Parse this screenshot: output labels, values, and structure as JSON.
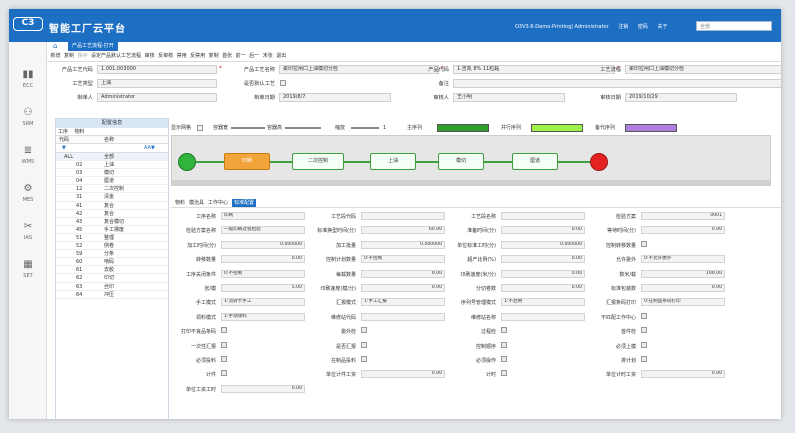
{
  "app": {
    "title": "智能工厂云平台",
    "logo": "C3",
    "user_info": "O3V3.6-Demo-Printing| Administrator",
    "links": [
      "注销",
      "密码",
      "关于"
    ],
    "search_placeholder": "全部"
  },
  "nav": [
    {
      "label": "ECC",
      "icon": "bar-chart-icon"
    },
    {
      "label": "SRM",
      "icon": "network-icon"
    },
    {
      "label": "WMS",
      "icon": "database-icon"
    },
    {
      "label": "MES",
      "icon": "gear-icon"
    },
    {
      "label": "IAS",
      "icon": "tools-icon"
    },
    {
      "label": "SET",
      "icon": "grid-icon"
    }
  ],
  "tabs": {
    "doc": "产品工艺流程-打开"
  },
  "toolbar": [
    "新增",
    "复制",
    "保存",
    "设定产品默认工艺流程",
    "审核",
    "反审核",
    "禁用",
    "反禁用",
    "复制",
    "首张",
    "前一",
    "后一",
    "末张",
    "退出"
  ],
  "header": {
    "process_code_label": "产品工艺代码",
    "process_code": "1.001.003000",
    "process_name_label": "产品工艺名称",
    "process_name": "柔印拉闸口上油模切分检",
    "product_code_label": "产品代码",
    "product_code": "1.吉凯 8% 11粒黏",
    "route_label": "工艺流程",
    "route": "柔印拉闸口上油模切分检",
    "type_label": "工艺类型",
    "type": "上油",
    "default_label": "是否默认工艺",
    "note_label": "备注",
    "creator_label": "制单人",
    "creator": "Administrator",
    "create_date_label": "制单日期",
    "create_date": "2019/8/7",
    "auditor_label": "审核人",
    "auditor": "王小明",
    "audit_date_label": "审核日期",
    "audit_date": "2019/10/29"
  },
  "config": {
    "title": "配置信息",
    "tabs": [
      "工序",
      "物料"
    ],
    "col_code": "代码",
    "col_name": "名称",
    "rows": [
      {
        "code": "ALL",
        "name": "全部"
      },
      {
        "code": "02",
        "name": "上油"
      },
      {
        "code": "03",
        "name": "模切"
      },
      {
        "code": "04",
        "name": "厘道"
      },
      {
        "code": "12",
        "name": "二次控制"
      },
      {
        "code": "31",
        "name": "清金"
      },
      {
        "code": "41",
        "name": "复合"
      },
      {
        "code": "42",
        "name": "复合"
      },
      {
        "code": "43",
        "name": "复合模切"
      },
      {
        "code": "45",
        "name": "手工摞废"
      },
      {
        "code": "51",
        "name": "整理"
      },
      {
        "code": "52",
        "name": "侧卷"
      },
      {
        "code": "59",
        "name": "分条"
      },
      {
        "code": "60",
        "name": "啃码"
      },
      {
        "code": "61",
        "name": "去胶"
      },
      {
        "code": "62",
        "name": "印切"
      },
      {
        "code": "63",
        "name": "丝印"
      },
      {
        "code": "64",
        "name": "冲压"
      }
    ]
  },
  "flow_controls": {
    "show_grid": "显示网格",
    "width_label": "容器宽",
    "height_label": "容器高",
    "zoom_label": "缩放",
    "zoom_value": "1",
    "main_col": "主序列",
    "parallel_col": "并行序列",
    "backup_col": "备代序列",
    "colors": {
      "main": "#2f9e2f",
      "parallel": "#9ef04a",
      "backup": "#b07ee0"
    }
  },
  "flow_nodes": [
    "印刷",
    "二次控制",
    "上油",
    "模切",
    "厘道"
  ],
  "prop_tabs": [
    "物料",
    "模治具",
    "工作中心",
    "标准配置"
  ],
  "props": [
    {
      "l": "工序名称",
      "v": "印刷",
      "t": "f"
    },
    {
      "l": "工艺段代码",
      "v": "",
      "t": "f"
    },
    {
      "l": "工艺段名称",
      "v": "",
      "t": "f"
    },
    {
      "l": "检验方案",
      "v": "0001",
      "t": "f"
    },
    {
      "l": "检验方案名称",
      "v": "一般印刷过程检验",
      "t": "f"
    },
    {
      "l": "标准换型时间(分)",
      "v": "60.00",
      "t": "f"
    },
    {
      "l": "准备时间(分)",
      "v": "0.00",
      "t": "f"
    },
    {
      "l": "等待时间(分)",
      "v": "0.00",
      "t": "f"
    },
    {
      "l": "加工时间(分)",
      "v": "0.000000",
      "t": "f"
    },
    {
      "l": "加工批量",
      "v": "0.000000",
      "t": "f"
    },
    {
      "l": "单位标准工时(分)",
      "v": "0.000000",
      "t": "f"
    },
    {
      "l": "控制转移数量",
      "v": "",
      "t": "c"
    },
    {
      "l": "转移数量",
      "v": "0.00",
      "t": "f"
    },
    {
      "l": "控制计划数量",
      "v": "0:不控制",
      "t": "f"
    },
    {
      "l": "超产比例(%)",
      "v": "0.00",
      "t": "f"
    },
    {
      "l": "允许委外",
      "v": "0:不允许委外",
      "t": "f"
    },
    {
      "l": "工序关闭条件",
      "v": "0:不控制",
      "t": "f"
    },
    {
      "l": "每载数量",
      "v": "0.00",
      "t": "f"
    },
    {
      "l": "印刷速度(米/分)",
      "v": "0.00",
      "t": "f"
    },
    {
      "l": "数米/载",
      "v": "100.00",
      "t": "f"
    },
    {
      "l": "张/模",
      "v": "5.00",
      "t": "f"
    },
    {
      "l": "印刷速度(模/分)",
      "v": "0.00",
      "t": "f"
    },
    {
      "l": "分切卷数",
      "v": "0.00",
      "t": "f"
    },
    {
      "l": "标准包装数",
      "v": "0.00",
      "t": "f"
    },
    {
      "l": "手工模式",
      "v": "1:流转卡手工",
      "t": "f"
    },
    {
      "l": "汇报模式",
      "v": "1:手工汇报",
      "t": "f"
    },
    {
      "l": "序列号管理模式",
      "v": "1:不启用",
      "t": "f"
    },
    {
      "l": "汇报条码打印",
      "v": "0:在制品条码打印",
      "t": "f"
    },
    {
      "l": "领料模式",
      "v": "1:手动领料",
      "t": "f"
    },
    {
      "l": "维修站代码",
      "v": "",
      "t": "f"
    },
    {
      "l": "维修站名称",
      "v": "",
      "t": "f"
    },
    {
      "l": "不匹配工作中心",
      "v": "",
      "t": "c"
    },
    {
      "l": "打印不良品条码",
      "v": "",
      "t": "c"
    },
    {
      "l": "委外检",
      "v": "",
      "t": "c"
    },
    {
      "l": "过程检",
      "v": "",
      "t": "c"
    },
    {
      "l": "首件检",
      "v": "",
      "t": "c"
    },
    {
      "l": "一次性汇报",
      "v": "",
      "t": "c"
    },
    {
      "l": "是否汇报",
      "v": "",
      "t": "c"
    },
    {
      "l": "控制顺序",
      "v": "",
      "t": "c"
    },
    {
      "l": "必须上模",
      "v": "",
      "t": "c"
    },
    {
      "l": "必须投料",
      "v": "",
      "t": "c"
    },
    {
      "l": "在制品投料",
      "v": "",
      "t": "c"
    },
    {
      "l": "必须操作",
      "v": "",
      "t": "c"
    },
    {
      "l": "排计划",
      "v": "",
      "t": "c"
    },
    {
      "l": "计件",
      "v": "",
      "t": "c"
    },
    {
      "l": "单位计件工资",
      "v": "0.00",
      "t": "f"
    },
    {
      "l": "计时",
      "v": "",
      "t": "c"
    },
    {
      "l": "单位计时工资",
      "v": "0.00",
      "t": "f"
    },
    {
      "l": "单位工资工时",
      "v": "0.00",
      "t": "f"
    }
  ]
}
